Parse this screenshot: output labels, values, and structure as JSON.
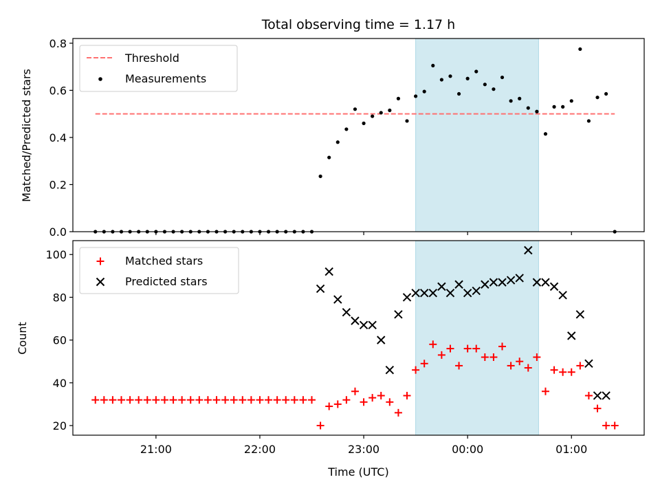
{
  "figure_title": "Total observing time = 1.17 h",
  "colors": {
    "threshold": "#ff7070",
    "measurement": "#000000",
    "matched": "#ff0000",
    "predicted": "#000000",
    "observing_span": "#add8e6"
  },
  "chart_data": [
    {
      "type": "scatter",
      "title": "Total observing time = 1.17 h",
      "xlabel": "",
      "ylabel": "Matched/Predicted stars",
      "xlim": [
        "20:12",
        "01:42"
      ],
      "ylim": [
        0,
        0.82
      ],
      "yticks": [
        0.0,
        0.2,
        0.4,
        0.6,
        0.8
      ],
      "ytick_labels": [
        "0.0",
        "0.2",
        "0.4",
        "0.6",
        "0.8"
      ],
      "legend_position": "upper left",
      "legend": [
        "Threshold",
        "Measurements"
      ],
      "shaded_span": {
        "start": "23:30",
        "end": "00:41"
      },
      "threshold": {
        "name": "Threshold",
        "y": 0.5,
        "x_start": "20:25",
        "x_end": "01:25",
        "style": "dashed"
      },
      "series": [
        {
          "name": "Measurements",
          "x": [
            "20:25",
            "20:30",
            "20:35",
            "20:40",
            "20:45",
            "20:50",
            "20:55",
            "21:00",
            "21:05",
            "21:10",
            "21:15",
            "21:20",
            "21:25",
            "21:30",
            "21:35",
            "21:40",
            "21:45",
            "21:50",
            "21:55",
            "22:00",
            "22:05",
            "22:10",
            "22:15",
            "22:20",
            "22:25",
            "22:30",
            "22:35",
            "22:40",
            "22:45",
            "22:50",
            "22:55",
            "23:00",
            "23:05",
            "23:10",
            "23:15",
            "23:20",
            "23:25",
            "23:30",
            "23:35",
            "23:40",
            "23:45",
            "23:50",
            "23:55",
            "00:00",
            "00:05",
            "00:10",
            "00:15",
            "00:20",
            "00:25",
            "00:30",
            "00:35",
            "00:40",
            "00:45",
            "00:50",
            "00:55",
            "01:00",
            "01:05",
            "01:10",
            "01:15",
            "01:20",
            "01:25"
          ],
          "y": [
            0,
            0,
            0,
            0,
            0,
            0,
            0,
            0,
            0,
            0,
            0,
            0,
            0,
            0,
            0,
            0,
            0,
            0,
            0,
            0,
            0,
            0,
            0,
            0,
            0,
            0,
            0.235,
            0.315,
            0.38,
            0.435,
            0.52,
            0.46,
            0.49,
            0.505,
            0.515,
            0.565,
            0.47,
            0.575,
            0.595,
            0.705,
            0.645,
            0.66,
            0.585,
            0.65,
            0.68,
            0.625,
            0.605,
            0.655,
            0.555,
            0.565,
            0.525,
            0.51,
            0.415,
            0.53,
            0.53,
            0.555,
            0.775,
            0.47,
            0.57,
            0.585,
            0
          ]
        }
      ]
    },
    {
      "type": "scatter",
      "title": "",
      "xlabel": "Time (UTC)",
      "ylabel": "Count",
      "xlim": [
        "20:12",
        "01:42"
      ],
      "xticks": [
        "21:00",
        "22:00",
        "23:00",
        "00:00",
        "01:00"
      ],
      "ylim": [
        15.5,
        106.5
      ],
      "yticks": [
        20,
        40,
        60,
        80,
        100
      ],
      "ytick_labels": [
        "20",
        "40",
        "60",
        "80",
        "100"
      ],
      "legend_position": "upper left",
      "legend": [
        "Matched stars",
        "Predicted stars"
      ],
      "shaded_span": {
        "start": "23:30",
        "end": "00:41"
      },
      "series": [
        {
          "name": "Matched stars",
          "marker": "plus",
          "x": [
            "20:25",
            "20:30",
            "20:35",
            "20:40",
            "20:45",
            "20:50",
            "20:55",
            "21:00",
            "21:05",
            "21:10",
            "21:15",
            "21:20",
            "21:25",
            "21:30",
            "21:35",
            "21:40",
            "21:45",
            "21:50",
            "21:55",
            "22:00",
            "22:05",
            "22:10",
            "22:15",
            "22:20",
            "22:25",
            "22:30",
            "22:35",
            "22:40",
            "22:45",
            "22:50",
            "22:55",
            "23:00",
            "23:05",
            "23:10",
            "23:15",
            "23:20",
            "23:25",
            "23:30",
            "23:35",
            "23:40",
            "23:45",
            "23:50",
            "23:55",
            "00:00",
            "00:05",
            "00:10",
            "00:15",
            "00:20",
            "00:25",
            "00:30",
            "00:35",
            "00:40",
            "00:45",
            "00:50",
            "00:55",
            "01:00",
            "01:05",
            "01:10",
            "01:15",
            "01:20",
            "01:25"
          ],
          "y": [
            32,
            32,
            32,
            32,
            32,
            32,
            32,
            32,
            32,
            32,
            32,
            32,
            32,
            32,
            32,
            32,
            32,
            32,
            32,
            32,
            32,
            32,
            32,
            32,
            32,
            32,
            20,
            29,
            30,
            32,
            36,
            31,
            33,
            34,
            31,
            26,
            34,
            46,
            49,
            58,
            53,
            56,
            48,
            56,
            56,
            52,
            52,
            57,
            48,
            50,
            47,
            52,
            36,
            46,
            45,
            45,
            48,
            34,
            28,
            20,
            20
          ]
        },
        {
          "name": "Predicted stars",
          "marker": "x",
          "x": [
            "22:35",
            "22:40",
            "22:45",
            "22:50",
            "22:55",
            "23:00",
            "23:05",
            "23:10",
            "23:15",
            "23:20",
            "23:25",
            "23:30",
            "23:35",
            "23:40",
            "23:45",
            "23:50",
            "23:55",
            "00:00",
            "00:05",
            "00:10",
            "00:15",
            "00:20",
            "00:25",
            "00:30",
            "00:35",
            "00:40",
            "00:45",
            "00:50",
            "00:55",
            "01:00",
            "01:05",
            "01:10",
            "01:15",
            "01:20"
          ],
          "y": [
            84,
            92,
            79,
            73,
            69,
            67,
            67,
            60,
            46,
            72,
            80,
            82,
            82,
            82,
            85,
            82,
            86,
            82,
            83,
            86,
            87,
            87,
            88,
            89,
            102,
            87,
            87,
            85,
            81,
            62,
            72,
            49,
            34,
            34
          ]
        }
      ]
    }
  ]
}
